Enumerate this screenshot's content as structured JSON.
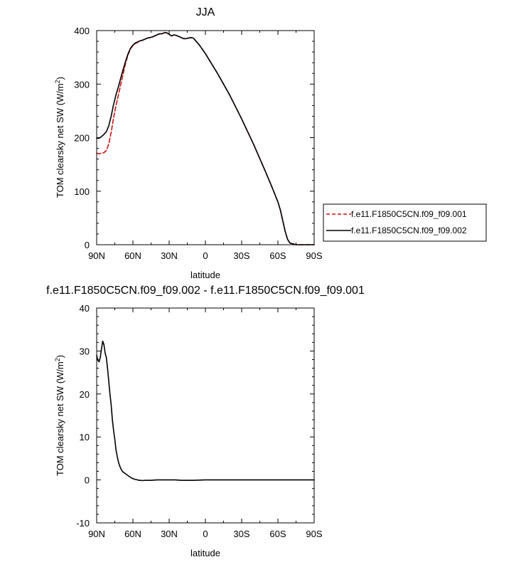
{
  "chart_data": [
    {
      "type": "line",
      "title": "JJA",
      "xlabel": "latitude",
      "ylabel": "TOM clearsky net SW (W/m",
      "ylabel_sup": "2",
      "ylabel_close": ")",
      "xlim": [
        90,
        -90
      ],
      "ylim": [
        0,
        400
      ],
      "xticks": [
        90,
        60,
        30,
        0,
        -30,
        -60,
        -90
      ],
      "xticklabels": [
        "90N",
        "60N",
        "30N",
        "0",
        "30S",
        "60S",
        "90S"
      ],
      "yticks": [
        0,
        100,
        200,
        300,
        400
      ],
      "yticklabels": [
        "0",
        "100",
        "200",
        "300",
        "400"
      ],
      "legend": {
        "placement": "right",
        "entries": [
          "f.e11.F1850C5CN.f09_f09.001",
          "f.e11.F1850C5CN.f09_f09.002"
        ]
      },
      "series": [
        {
          "name": "f.e11.F1850C5CN.f09_f09.001",
          "color": "#cc1111",
          "dash": "dashed",
          "x": [
            90,
            88,
            86,
            84,
            82,
            80,
            78,
            76,
            74,
            72,
            70,
            68,
            66,
            64,
            62,
            60,
            58,
            56,
            54,
            52,
            50,
            48,
            46,
            44,
            42,
            40,
            38,
            36,
            34,
            32,
            30,
            28,
            26,
            24,
            22,
            20,
            18,
            16,
            14,
            12,
            10,
            5,
            0,
            -10,
            -20,
            -30,
            -40,
            -50,
            -55,
            -60,
            -62,
            -64,
            -66,
            -68,
            -70,
            -75,
            -80,
            -90
          ],
          "y": [
            171,
            170,
            171,
            172,
            176,
            188,
            210,
            237,
            260,
            280,
            300,
            320,
            340,
            355,
            366,
            372,
            376,
            378,
            381,
            382,
            384,
            386,
            387,
            388,
            390,
            392,
            394,
            394,
            396,
            396,
            393,
            390,
            392,
            391,
            389,
            387,
            385,
            385,
            386,
            387,
            386,
            373,
            357,
            320,
            280,
            235,
            187,
            135,
            108,
            80,
            65,
            45,
            25,
            10,
            3,
            0,
            0,
            0
          ]
        },
        {
          "name": "f.e11.F1850C5CN.f09_f09.002",
          "color": "#000000",
          "dash": "solid",
          "x": [
            90,
            88,
            86,
            84,
            82,
            80,
            78,
            76,
            74,
            72,
            70,
            68,
            66,
            64,
            62,
            60,
            58,
            56,
            54,
            52,
            50,
            48,
            46,
            44,
            42,
            40,
            38,
            36,
            34,
            32,
            30,
            28,
            26,
            24,
            22,
            20,
            18,
            16,
            14,
            12,
            10,
            5,
            0,
            -10,
            -20,
            -30,
            -40,
            -50,
            -55,
            -60,
            -62,
            -64,
            -66,
            -68,
            -70,
            -75,
            -80,
            -90
          ],
          "y": [
            199,
            199,
            202,
            206,
            211,
            222,
            240,
            262,
            280,
            295,
            312,
            328,
            343,
            357,
            367,
            373,
            377,
            379,
            381,
            382,
            384,
            386,
            387,
            388,
            390,
            392,
            394,
            394,
            396,
            396,
            393,
            390,
            392,
            391,
            389,
            387,
            385,
            385,
            386,
            387,
            386,
            373,
            357,
            320,
            280,
            235,
            187,
            135,
            108,
            80,
            65,
            45,
            25,
            10,
            3,
            0,
            0,
            0
          ]
        }
      ]
    },
    {
      "type": "line",
      "title": "f.e11.F1850C5CN.f09_f09.002 - f.e11.F1850C5CN.f09_f09.001",
      "xlabel": "latitude",
      "ylabel": "TOM clearsky net SW (W/m",
      "ylabel_sup": "2",
      "ylabel_close": ")",
      "xlim": [
        90,
        -90
      ],
      "ylim": [
        -10,
        40
      ],
      "xticks": [
        90,
        60,
        30,
        0,
        -30,
        -60,
        -90
      ],
      "xticklabels": [
        "90N",
        "60N",
        "30N",
        "0",
        "30S",
        "60S",
        "90S"
      ],
      "yticks": [
        -10,
        0,
        10,
        20,
        30,
        40
      ],
      "yticklabels": [
        "-10",
        "0",
        "10",
        "20",
        "30",
        "40"
      ],
      "series": [
        {
          "color": "#000000",
          "dash": "solid",
          "x": [
            90,
            89,
            88,
            87,
            86,
            85,
            84,
            83,
            82,
            81,
            80,
            79,
            78,
            77,
            76,
            75,
            74,
            73,
            72,
            71,
            70,
            69,
            68,
            67,
            66,
            65,
            64,
            62,
            60,
            58,
            56,
            55,
            54,
            52,
            50,
            45,
            40,
            35,
            30,
            25,
            20,
            10,
            0,
            -10,
            -30,
            -60,
            -90
          ],
          "y": [
            29,
            27.8,
            27.5,
            28.5,
            30.5,
            32.3,
            31.5,
            29.5,
            28.5,
            26,
            23,
            20,
            17.5,
            14,
            11.5,
            9.5,
            7,
            5.5,
            4.2,
            3.3,
            2.6,
            2.1,
            1.8,
            1.6,
            1.4,
            1.2,
            1.0,
            0.6,
            0.3,
            0.1,
            0.0,
            -0.1,
            -0.1,
            -0.15,
            -0.1,
            -0.1,
            0.0,
            0.0,
            0.0,
            0.0,
            -0.1,
            -0.1,
            0.0,
            0.0,
            0.0,
            0.0,
            0.0
          ]
        }
      ]
    }
  ]
}
